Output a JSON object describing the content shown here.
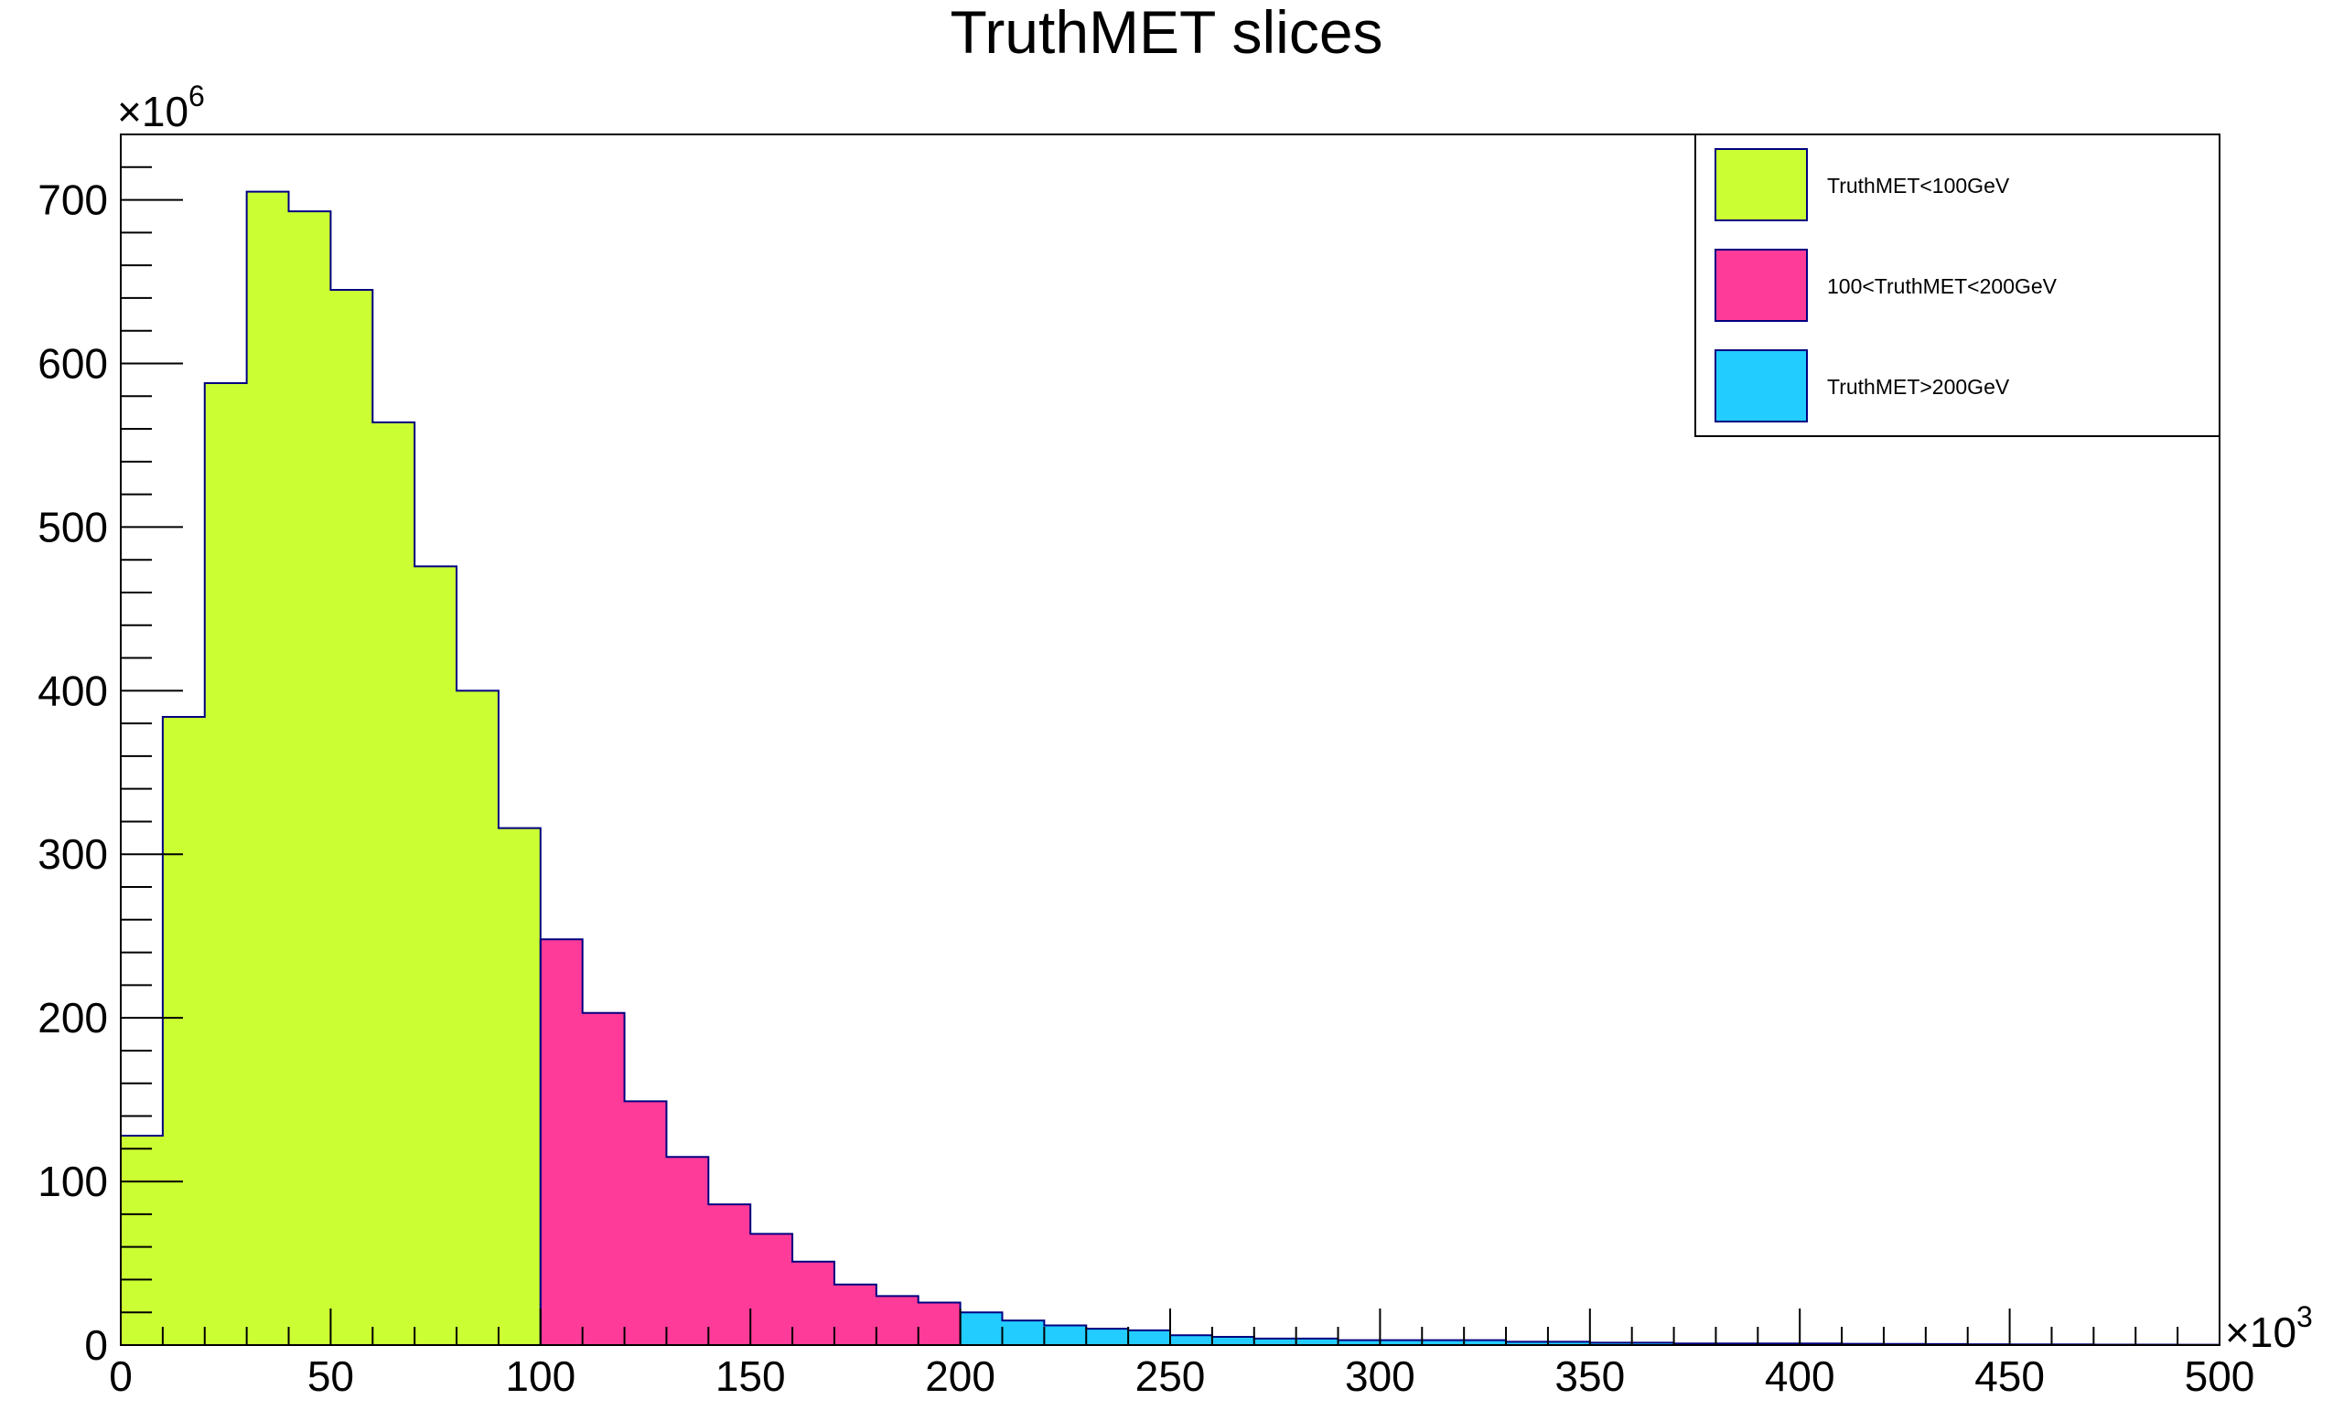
{
  "chart_data": {
    "type": "bar",
    "title": "TruthMET slices",
    "xlabel": "",
    "ylabel": "",
    "x_multiplier": "×10",
    "x_multiplier_exp": "3",
    "y_multiplier": "×10",
    "y_multiplier_exp": "6",
    "xlim": [
      0,
      500
    ],
    "ylim": [
      0,
      740
    ],
    "bin_width": 10,
    "x_ticks": [
      0,
      50,
      100,
      150,
      200,
      250,
      300,
      350,
      400,
      450,
      500
    ],
    "x_tick_labels": [
      "0",
      "50",
      "100",
      "150",
      "200",
      "250",
      "300",
      "350",
      "400",
      "450",
      "500"
    ],
    "y_ticks": [
      0,
      100,
      200,
      300,
      400,
      500,
      600,
      700
    ],
    "y_tick_labels": [
      "0",
      "100",
      "200",
      "300",
      "400",
      "500",
      "600",
      "700"
    ],
    "grid": false,
    "legend_position": "top-right",
    "series": [
      {
        "name": "TruthMET<100GeV",
        "color": "#ccff33",
        "x_start": 0,
        "values": [
          128,
          384,
          588,
          705,
          693,
          645,
          564,
          476,
          400,
          316
        ]
      },
      {
        "name": "100<TruthMET<200GeV",
        "color": "#ff3b99",
        "x_start": 100,
        "values": [
          248,
          203,
          149,
          115,
          86,
          68,
          51,
          37,
          30,
          26
        ]
      },
      {
        "name": "TruthMET>200GeV",
        "color": "#22ccff",
        "x_start": 200,
        "values": [
          20,
          15,
          12,
          10,
          9,
          6,
          5,
          4,
          4,
          3,
          3,
          3,
          3,
          2,
          2,
          1.5,
          1.5,
          1,
          1,
          1,
          1,
          0.8,
          0.7,
          0.6,
          0.5,
          0.4,
          0.4,
          0.3,
          0.3,
          0.2
        ]
      }
    ]
  }
}
